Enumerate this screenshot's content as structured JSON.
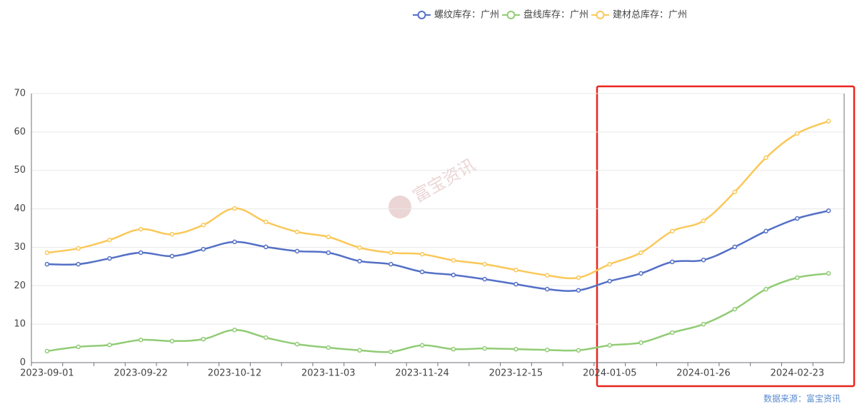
{
  "chart_data": {
    "type": "line",
    "categories": [
      "2023-09-01",
      null,
      null,
      "2023-09-22",
      null,
      null,
      "2023-10-12",
      null,
      null,
      "2023-11-03",
      null,
      null,
      "2023-11-24",
      null,
      null,
      "2023-12-15",
      null,
      null,
      "2024-01-05",
      null,
      null,
      "2024-01-26",
      null,
      null,
      "2024-02-23",
      null
    ],
    "series": [
      {
        "name": "螺纹库存：广州",
        "color": "#5470c6",
        "values": [
          25.6,
          25.6,
          27.1,
          28.6,
          27.7,
          29.5,
          31.4,
          30.1,
          29.0,
          28.6,
          26.4,
          25.6,
          23.6,
          22.8,
          21.7,
          20.4,
          19.1,
          18.8,
          21.2,
          23.2,
          26.2,
          26.7,
          30.1,
          34.2,
          37.5,
          39.5
        ]
      },
      {
        "name": "盘线库存：广州",
        "color": "#91cc75",
        "values": [
          3.0,
          4.1,
          4.6,
          5.9,
          5.6,
          6.1,
          8.5,
          6.5,
          4.8,
          3.9,
          3.2,
          2.8,
          4.5,
          3.5,
          3.7,
          3.5,
          3.3,
          3.2,
          4.5,
          5.2,
          7.8,
          10.0,
          13.9,
          19.1,
          22.1,
          23.2
        ]
      },
      {
        "name": "建材总库存：广州",
        "color": "#fac858",
        "values": [
          28.6,
          29.7,
          31.9,
          34.7,
          33.4,
          35.8,
          40.1,
          36.6,
          34.0,
          32.7,
          29.9,
          28.6,
          28.2,
          26.6,
          25.6,
          24.1,
          22.7,
          22.1,
          25.6,
          28.6,
          34.2,
          36.9,
          44.4,
          53.3,
          59.6,
          62.8
        ]
      }
    ],
    "ylim": [
      0,
      70
    ],
    "yticks": [
      0,
      10,
      20,
      30,
      40,
      50,
      60,
      70
    ],
    "grid": true,
    "legend": "top",
    "source": "数据来源：富宝资讯",
    "watermark": "富宝资讯"
  }
}
